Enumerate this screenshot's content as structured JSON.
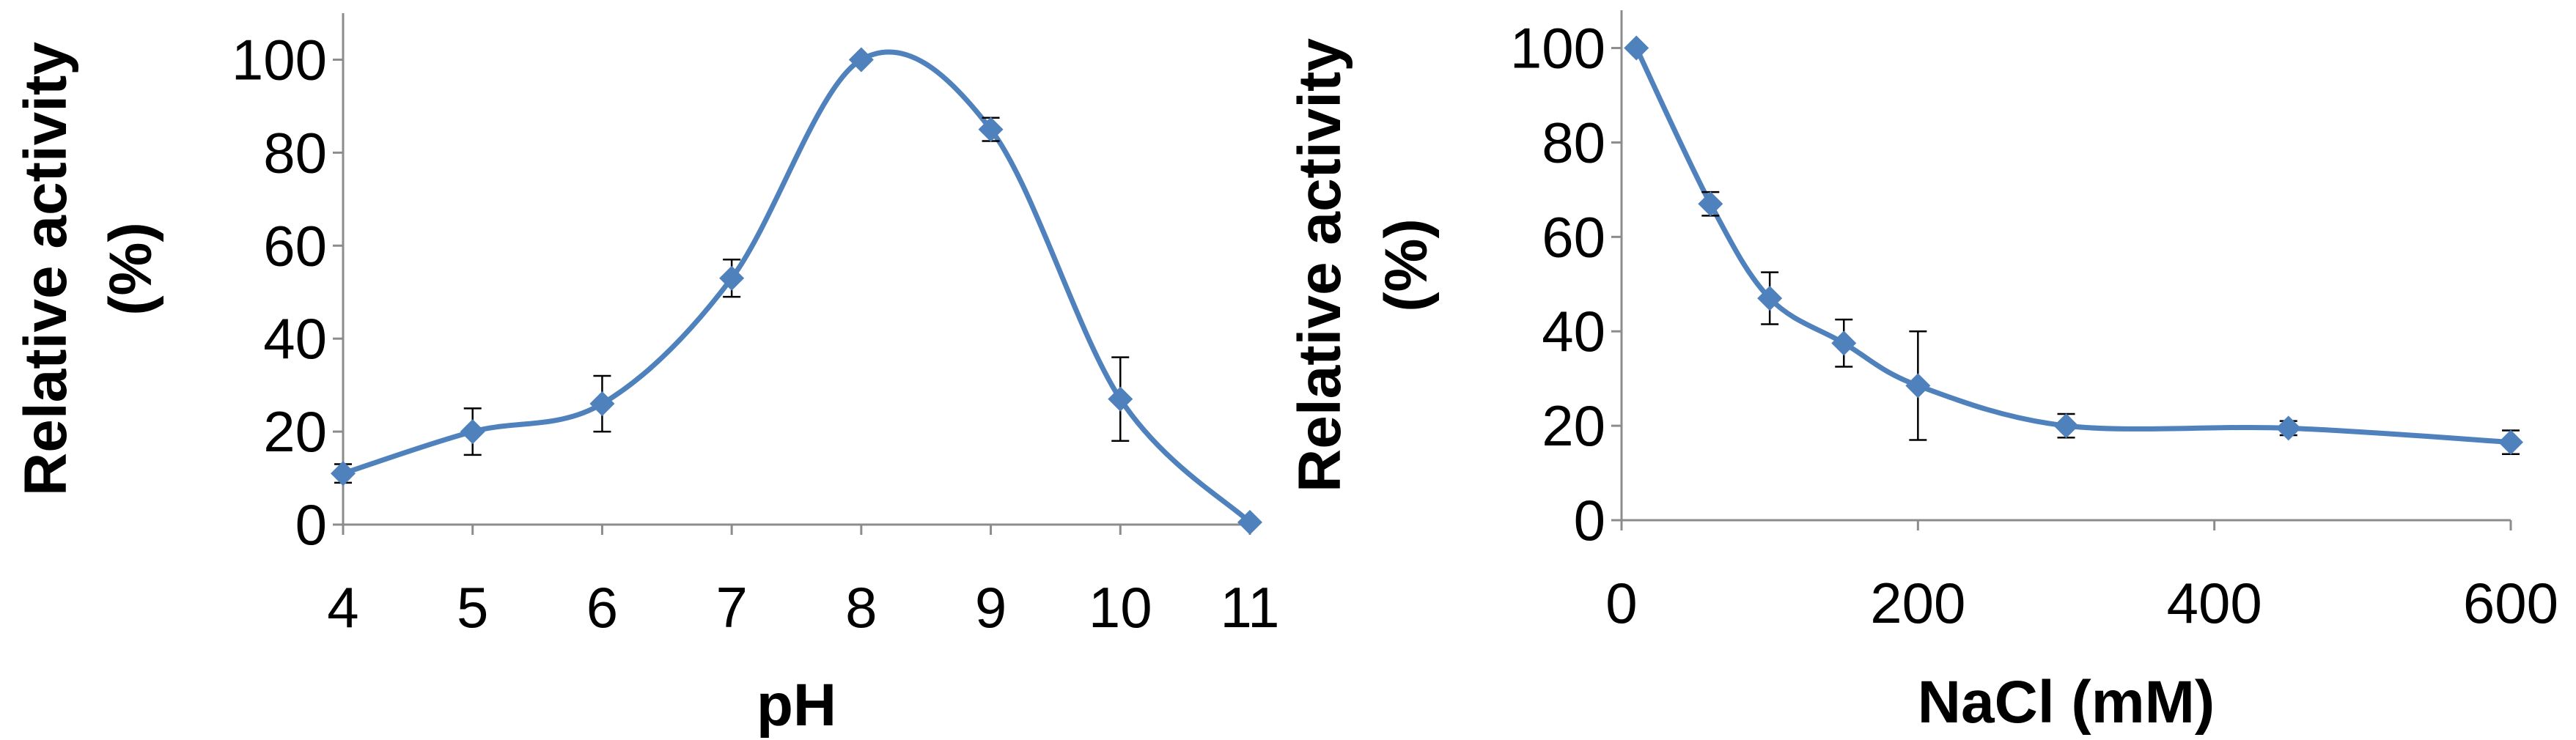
{
  "chart_data": [
    {
      "type": "line",
      "xlabel": "pH",
      "ylabel_lines": [
        "Relative activity",
        "(%)"
      ],
      "xlim": [
        4,
        11
      ],
      "ylim": [
        0,
        110
      ],
      "xticks": [
        4,
        5,
        6,
        7,
        8,
        9,
        10,
        11
      ],
      "yticks": [
        0,
        20,
        40,
        60,
        80,
        100
      ],
      "grid": false,
      "series_color": "#4F81BD",
      "marker": "diamond",
      "smooth": true,
      "series": [
        {
          "x": [
            4,
            5,
            6,
            7,
            8,
            9,
            10,
            11
          ],
          "y": [
            11,
            20,
            26,
            53,
            100,
            85,
            27,
            0.5
          ],
          "err": [
            2,
            5,
            6,
            4,
            0,
            2.5,
            9,
            0
          ]
        }
      ]
    },
    {
      "type": "line",
      "xlabel": "NaCl (mM)",
      "ylabel_lines": [
        "Relative activity",
        "(%)"
      ],
      "xlim": [
        0,
        600
      ],
      "ylim": [
        0,
        108
      ],
      "xticks": [
        0,
        200,
        400,
        600
      ],
      "yticks": [
        0,
        20,
        40,
        60,
        80,
        100
      ],
      "grid": false,
      "series_color": "#4F81BD",
      "marker": "diamond",
      "smooth": true,
      "series": [
        {
          "x": [
            10,
            60,
            100,
            150,
            200,
            300,
            450,
            600
          ],
          "y": [
            100,
            67,
            47,
            37.5,
            28.5,
            20,
            19.5,
            16.5
          ],
          "err": [
            0,
            2.5,
            5.5,
            5,
            11.5,
            2.5,
            1.5,
            2.5
          ]
        }
      ]
    }
  ]
}
